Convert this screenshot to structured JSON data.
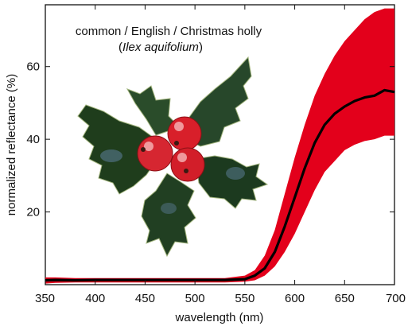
{
  "chart_data": {
    "type": "area",
    "title": "common / English / Christmas holly",
    "subtitle_species": "Ilex aquifolium",
    "xlabel": "wavelength (nm)",
    "ylabel": "normalized reflectance (%)",
    "xlim": [
      350,
      700
    ],
    "ylim": [
      0,
      77
    ],
    "x_ticks": [
      350,
      400,
      450,
      500,
      550,
      600,
      650,
      700
    ],
    "y_ticks": [
      20,
      40,
      60
    ],
    "grid": false,
    "colors": {
      "band": "#e3001b",
      "mean": "#000000",
      "leaf_dark": "#1f3d1c",
      "berry": "#d81f2a"
    },
    "image": "holly-sprig-with-red-berries",
    "series": [
      {
        "role": "mean",
        "x": [
          350,
          360,
          380,
          400,
          450,
          500,
          530,
          550,
          560,
          570,
          580,
          590,
          600,
          610,
          620,
          630,
          640,
          650,
          660,
          670,
          680,
          690,
          700
        ],
        "values": [
          1.2,
          1.3,
          1.2,
          1.3,
          1.3,
          1.3,
          1.3,
          1.5,
          2.5,
          4.5,
          9,
          16,
          24,
          32,
          39,
          44,
          47,
          49,
          50.5,
          51.5,
          52,
          53.5,
          53
        ]
      },
      {
        "role": "range-upper",
        "x": [
          350,
          360,
          380,
          400,
          450,
          500,
          530,
          550,
          560,
          570,
          580,
          590,
          600,
          610,
          620,
          630,
          640,
          650,
          660,
          670,
          680,
          690,
          700
        ],
        "values": [
          2,
          2,
          1.8,
          1.8,
          1.8,
          1.8,
          1.8,
          2.5,
          4,
          8,
          15,
          25,
          35,
          44,
          52,
          58,
          63,
          67,
          70,
          73,
          75,
          76,
          76
        ]
      },
      {
        "role": "range-lower",
        "x": [
          350,
          360,
          380,
          400,
          450,
          500,
          530,
          550,
          560,
          570,
          580,
          590,
          600,
          610,
          620,
          630,
          640,
          650,
          660,
          670,
          680,
          690,
          700
        ],
        "values": [
          0.3,
          0.5,
          0.6,
          0.6,
          0.6,
          0.6,
          0.6,
          0.8,
          1.2,
          2.5,
          5,
          9,
          14,
          20,
          26,
          31,
          34,
          37,
          38.5,
          39.5,
          40,
          41,
          41
        ]
      }
    ]
  }
}
